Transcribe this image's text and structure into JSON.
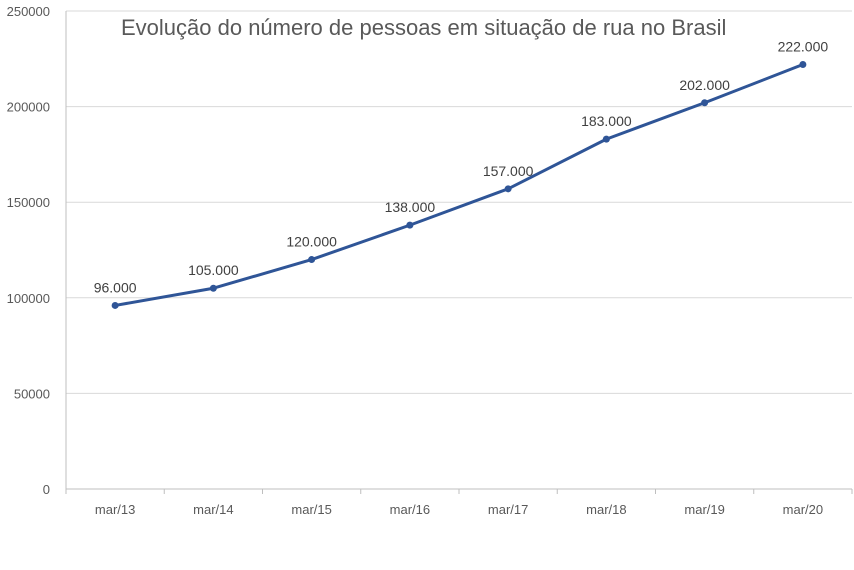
{
  "chart_data": {
    "type": "line",
    "title": "Evolução do número de pessoas em situação de rua no Brasil",
    "xlabel": "",
    "ylabel": "",
    "categories": [
      "mar/13",
      "mar/14",
      "mar/15",
      "mar/16",
      "mar/17",
      "mar/18",
      "mar/19",
      "mar/20"
    ],
    "series": [
      {
        "values": [
          96000,
          105000,
          120000,
          138000,
          157000,
          183000,
          202000,
          222000
        ],
        "data_labels": [
          "96.000",
          "105.000",
          "120.000",
          "138.000",
          "157.000",
          "183.000",
          "202.000",
          "222.000"
        ],
        "color": "#2f5597"
      }
    ],
    "ylim": [
      0,
      250000
    ],
    "y_ticks": [
      0,
      50000,
      100000,
      150000,
      200000,
      250000
    ],
    "y_tick_labels": [
      "0",
      "50000",
      "100000",
      "150000",
      "200000",
      "250000"
    ],
    "grid": true,
    "legend": "none",
    "grid_color": "#d9d9d9",
    "axis_color": "#bfbfbf"
  }
}
